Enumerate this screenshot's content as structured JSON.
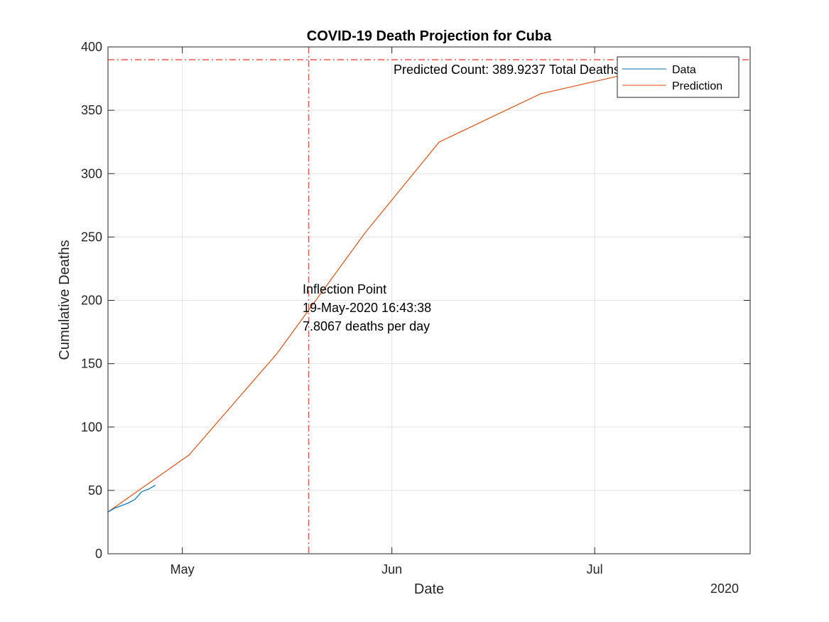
{
  "chart_data": {
    "type": "line",
    "title": "COVID-19 Death Projection for Cuba",
    "xlabel": "Date",
    "ylabel": "Cumulative Deaths",
    "x_secondary_label": "2020",
    "x_range": [
      "2020-04-20",
      "2020-07-24"
    ],
    "ylim": [
      0,
      400
    ],
    "yticks": [
      0,
      50,
      100,
      150,
      200,
      250,
      300,
      350,
      400
    ],
    "xticks": [
      {
        "date": "2020-05-01",
        "label": "May"
      },
      {
        "date": "2020-06-01",
        "label": "Jun"
      },
      {
        "date": "2020-07-01",
        "label": "Jul"
      }
    ],
    "grid": true,
    "legend_position": "top-right",
    "series": [
      {
        "name": "Data",
        "color": "#0072BD",
        "points": [
          [
            "2020-04-20",
            33
          ],
          [
            "2020-04-21",
            36
          ],
          [
            "2020-04-22",
            38
          ],
          [
            "2020-04-23",
            40
          ],
          [
            "2020-04-24",
            43
          ],
          [
            "2020-04-25",
            49
          ],
          [
            "2020-04-26",
            51
          ],
          [
            "2020-04-27",
            54
          ]
        ]
      },
      {
        "name": "Prediction",
        "color": "#D95319",
        "points": [
          [
            "2020-04-20",
            33
          ],
          [
            "2020-05-02",
            78
          ],
          [
            "2020-05-15",
            158
          ],
          [
            "2020-05-28",
            253
          ],
          [
            "2020-06-08",
            325
          ],
          [
            "2020-06-23",
            363
          ],
          [
            "2020-07-07",
            380
          ]
        ]
      }
    ],
    "reference_lines": [
      {
        "orientation": "horizontal",
        "y": 389.9237,
        "color": "#EF5350",
        "style": "dash-dot"
      },
      {
        "orientation": "vertical",
        "x": "2020-05-19T16:43:38",
        "color": "#EF5350",
        "style": "dash-dot"
      }
    ],
    "annotations": {
      "predicted": "Predicted Count: 389.9237 Total Deaths",
      "inflection_title": "Inflection Point",
      "inflection_date": "19-May-2020 16:43:38",
      "inflection_rate": "7.8067 deaths per day"
    }
  }
}
